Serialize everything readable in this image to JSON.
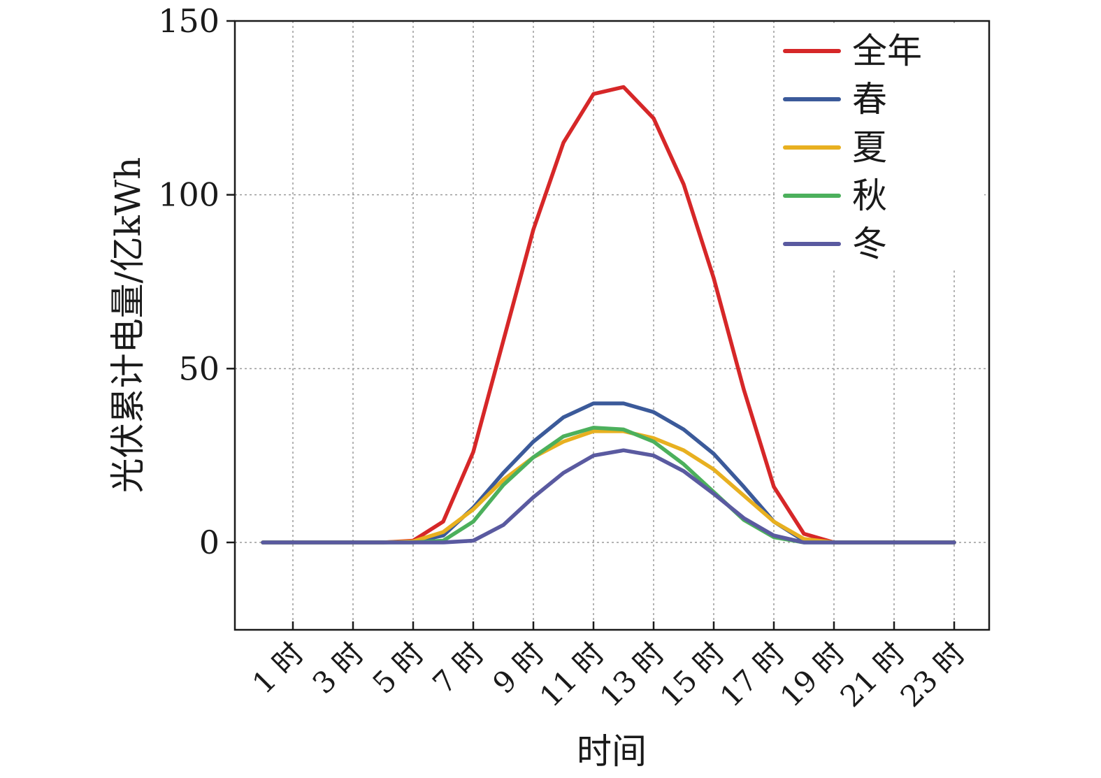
{
  "chart_data": {
    "type": "line",
    "xlabel": "时间",
    "ylabel": "光伏累计电量/亿kWh",
    "ylim": [
      -25,
      150
    ],
    "y_ticks": [
      0,
      50,
      100,
      150
    ],
    "grid": true,
    "legend_position": "top-right",
    "x_tick_labels": [
      "1 时",
      "3 时",
      "5 时",
      "7 时",
      "9 时",
      "11 时",
      "13 时",
      "15 时",
      "17 时",
      "19 时",
      "21 时",
      "23 时"
    ],
    "x_tick_values": [
      1,
      3,
      5,
      7,
      9,
      11,
      13,
      15,
      17,
      19,
      21,
      23
    ],
    "x": [
      0,
      1,
      2,
      3,
      4,
      5,
      6,
      7,
      8,
      9,
      10,
      11,
      12,
      13,
      14,
      15,
      16,
      17,
      18,
      19,
      20,
      21,
      22,
      23
    ],
    "series": [
      {
        "name": "全年",
        "color": "#d62728",
        "values": [
          0,
          0,
          0,
          0,
          0,
          0.5,
          6,
          26,
          58,
          90,
          115,
          129,
          131,
          122,
          103,
          76,
          44,
          16,
          2.5,
          0,
          0,
          0,
          0,
          0
        ]
      },
      {
        "name": "春",
        "color": "#3b5a9a",
        "values": [
          0,
          0,
          0,
          0,
          0,
          0.2,
          2,
          10,
          20,
          29,
          36,
          40,
          40,
          37.5,
          32.5,
          25.5,
          16,
          6,
          0.5,
          0,
          0,
          0,
          0,
          0
        ]
      },
      {
        "name": "夏",
        "color": "#e8b020",
        "values": [
          0,
          0,
          0,
          0,
          0,
          0.3,
          3,
          9.5,
          18,
          24.5,
          29,
          32,
          32,
          30,
          26.5,
          21,
          13.5,
          6,
          1,
          0,
          0,
          0,
          0,
          0
        ]
      },
      {
        "name": "秋",
        "color": "#4cb05c",
        "values": [
          0,
          0,
          0,
          0,
          0,
          0,
          0.5,
          6,
          16.5,
          24.5,
          30.5,
          33,
          32.5,
          29,
          22.5,
          14.5,
          6.5,
          1.5,
          0,
          0,
          0,
          0,
          0,
          0
        ]
      },
      {
        "name": "冬",
        "color": "#5a5aa0",
        "values": [
          0,
          0,
          0,
          0,
          0,
          0,
          0,
          0.5,
          5,
          13,
          20,
          25,
          26.5,
          25,
          20.5,
          14,
          7,
          2,
          0,
          0,
          0,
          0,
          0,
          0
        ]
      }
    ]
  }
}
